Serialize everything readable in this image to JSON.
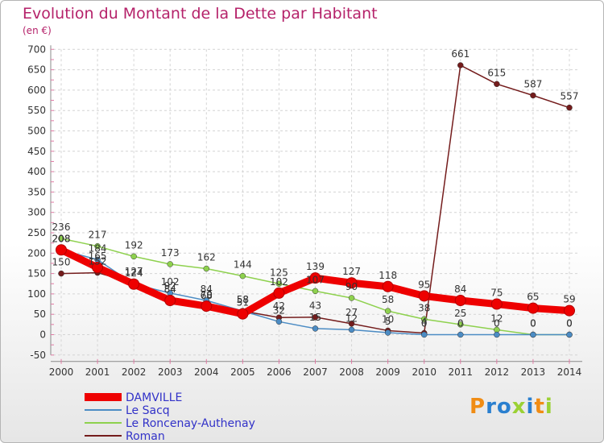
{
  "title": "Evolution du Montant de la Dette par Habitant",
  "unit_label": "(en €)",
  "logo": "Proxiti",
  "chart_data": {
    "type": "line",
    "title": "Evolution du Montant de la Dette par Habitant",
    "ylabel": "(en €)",
    "xlabel": "",
    "x": [
      "2000",
      "2001",
      "2002",
      "2003",
      "2004",
      "2005",
      "2006",
      "2007",
      "2008",
      "2009",
      "2010",
      "2011",
      "2012",
      "2013",
      "2014"
    ],
    "ylim": [
      -50,
      700
    ],
    "yticks": [
      -50,
      0,
      50,
      100,
      150,
      200,
      250,
      300,
      350,
      400,
      450,
      500,
      550,
      600,
      650,
      700
    ],
    "grid": true,
    "legend_position": "bottom-left",
    "series": [
      {
        "name": "DAMVILLE",
        "color": "#ee0000",
        "values": [
          208,
          165,
          124,
          84,
          70,
          51,
          102,
          139,
          127,
          118,
          95,
          84,
          75,
          65,
          59
        ]
      },
      {
        "name": "Le Sacq",
        "color": "#4c8cc4",
        "values": [
          208,
          184,
          124,
          102,
          84,
          58,
          32,
          15,
          12,
          5,
          0,
          0,
          0,
          0,
          0
        ]
      },
      {
        "name": "Le Roncenay-Authenay",
        "color": "#8ed14e",
        "values": [
          236,
          217,
          192,
          173,
          162,
          144,
          125,
          107,
          90,
          58,
          38,
          25,
          12,
          0,
          0
        ]
      },
      {
        "name": "Roman",
        "color": "#741c1c",
        "values": [
          150,
          152,
          127,
          92,
          68,
          58,
          42,
          43,
          27,
          10,
          4,
          661,
          615,
          587,
          557
        ]
      }
    ]
  }
}
